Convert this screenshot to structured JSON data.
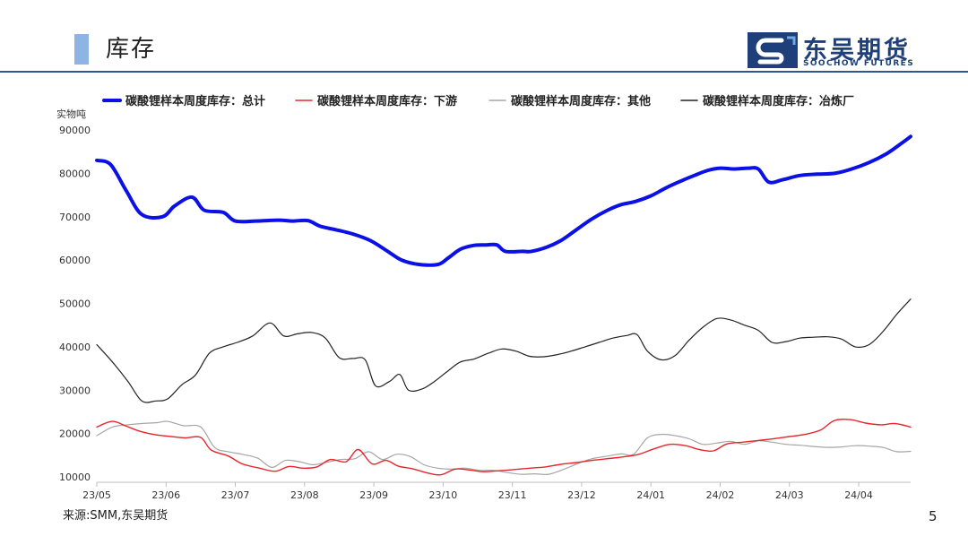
{
  "header": {
    "title": "库存",
    "logo_cn": "东吴期货",
    "logo_en": "SOOCHOW FUTURES"
  },
  "footer": {
    "source": "来源:SMM,东吴期货",
    "page_number": "5"
  },
  "colors": {
    "total": "#0a10e6",
    "downstream": "#e8252b",
    "other": "#a6a6a6",
    "smelter": "#222222",
    "brand": "#1f3f7a",
    "rule": "#2f5597"
  },
  "chart_data": {
    "type": "line",
    "title": "",
    "ylabel": "实物吨",
    "xlabel": "",
    "ylim": [
      10000,
      90000
    ],
    "yticks": [
      10000,
      20000,
      30000,
      40000,
      50000,
      60000,
      70000,
      80000,
      90000
    ],
    "ytick_labels": [
      "10000",
      "20000",
      "30000",
      "40000",
      "50000",
      "60000",
      "70000",
      "80000",
      "90000"
    ],
    "x_range": [
      0,
      47
    ],
    "x_ticks": [
      {
        "x": 0,
        "label": "23/05"
      },
      {
        "x": 4,
        "label": "23/06"
      },
      {
        "x": 8,
        "label": "23/07"
      },
      {
        "x": 12,
        "label": "23/08"
      },
      {
        "x": 16,
        "label": "23/09"
      },
      {
        "x": 20,
        "label": "23/10"
      },
      {
        "x": 24,
        "label": "23/11"
      },
      {
        "x": 28,
        "label": "23/12"
      },
      {
        "x": 32,
        "label": "24/01"
      },
      {
        "x": 36,
        "label": "24/02"
      },
      {
        "x": 40,
        "label": "24/03"
      },
      {
        "x": 44,
        "label": "24/04"
      }
    ],
    "series": [
      {
        "name": "碳酸锂样本周度库存：总计",
        "key": "total",
        "width": 4,
        "points": [
          [
            0,
            83000
          ],
          [
            0.8,
            82000
          ],
          [
            1.7,
            76000
          ],
          [
            2.6,
            70500
          ],
          [
            3.8,
            70000
          ],
          [
            4.5,
            72500
          ],
          [
            5.5,
            74500
          ],
          [
            6.2,
            71500
          ],
          [
            7.3,
            71000
          ],
          [
            8.0,
            69000
          ],
          [
            9.2,
            69000
          ],
          [
            10.5,
            69200
          ],
          [
            11.3,
            69000
          ],
          [
            12.2,
            69100
          ],
          [
            12.9,
            67800
          ],
          [
            13.8,
            67000
          ],
          [
            14.8,
            66000
          ],
          [
            15.8,
            64500
          ],
          [
            16.8,
            62000
          ],
          [
            17.6,
            60000
          ],
          [
            18.6,
            59000
          ],
          [
            19.7,
            59000
          ],
          [
            20.3,
            60500
          ],
          [
            21.0,
            62500
          ],
          [
            21.8,
            63400
          ],
          [
            22.5,
            63500
          ],
          [
            23.1,
            63500
          ],
          [
            23.6,
            62000
          ],
          [
            24.6,
            62000
          ],
          [
            25.1,
            62000
          ],
          [
            26.0,
            63000
          ],
          [
            26.8,
            64500
          ],
          [
            27.7,
            67000
          ],
          [
            28.6,
            69500
          ],
          [
            29.5,
            71500
          ],
          [
            30.3,
            72800
          ],
          [
            31.1,
            73500
          ],
          [
            32.0,
            74800
          ],
          [
            32.8,
            76500
          ],
          [
            33.6,
            78000
          ],
          [
            34.5,
            79500
          ],
          [
            35.3,
            80700
          ],
          [
            36.0,
            81200
          ],
          [
            36.8,
            81000
          ],
          [
            37.6,
            81200
          ],
          [
            38.2,
            81000
          ],
          [
            38.8,
            78000
          ],
          [
            39.6,
            78500
          ],
          [
            40.6,
            79500
          ],
          [
            41.6,
            79800
          ],
          [
            42.6,
            80000
          ],
          [
            43.6,
            81000
          ],
          [
            44.6,
            82500
          ],
          [
            45.6,
            84500
          ],
          [
            46.5,
            87000
          ],
          [
            47.0,
            88500
          ]
        ]
      },
      {
        "name": "碳酸锂样本周度库存：下游",
        "key": "downstream",
        "width": 1.4,
        "points": [
          [
            0,
            21500
          ],
          [
            0.9,
            22800
          ],
          [
            1.7,
            21700
          ],
          [
            2.5,
            20500
          ],
          [
            3.4,
            19700
          ],
          [
            4.3,
            19300
          ],
          [
            5.1,
            19000
          ],
          [
            6.0,
            19100
          ],
          [
            6.6,
            16200
          ],
          [
            7.6,
            14800
          ],
          [
            8.4,
            13000
          ],
          [
            9.4,
            12000
          ],
          [
            10.3,
            11300
          ],
          [
            11.1,
            12400
          ],
          [
            11.9,
            12000
          ],
          [
            12.7,
            12300
          ],
          [
            13.5,
            14000
          ],
          [
            14.4,
            13500
          ],
          [
            15.1,
            16300
          ],
          [
            15.9,
            13000
          ],
          [
            16.7,
            13800
          ],
          [
            17.4,
            12500
          ],
          [
            18.3,
            11800
          ],
          [
            19.2,
            10800
          ],
          [
            19.9,
            10500
          ],
          [
            20.7,
            11800
          ],
          [
            21.5,
            11600
          ],
          [
            22.3,
            11200
          ],
          [
            23.2,
            11400
          ],
          [
            24.1,
            11700
          ],
          [
            25.0,
            12000
          ],
          [
            25.9,
            12300
          ],
          [
            26.8,
            12900
          ],
          [
            27.7,
            13300
          ],
          [
            28.6,
            13800
          ],
          [
            29.5,
            14200
          ],
          [
            30.4,
            14600
          ],
          [
            31.3,
            15200
          ],
          [
            32.2,
            16500
          ],
          [
            33.1,
            17500
          ],
          [
            34.0,
            17200
          ],
          [
            34.8,
            16300
          ],
          [
            35.6,
            16000
          ],
          [
            36.4,
            17600
          ],
          [
            37.3,
            18000
          ],
          [
            38.2,
            18400
          ],
          [
            39.1,
            18800
          ],
          [
            40.0,
            19300
          ],
          [
            40.9,
            19800
          ],
          [
            41.8,
            20800
          ],
          [
            42.6,
            23000
          ],
          [
            43.5,
            23200
          ],
          [
            44.4,
            22400
          ],
          [
            45.3,
            22000
          ],
          [
            46.1,
            22300
          ],
          [
            47.0,
            21500
          ]
        ]
      },
      {
        "name": "碳酸锂样本周度库存：其他",
        "key": "other",
        "width": 1.2,
        "points": [
          [
            0,
            19500
          ],
          [
            0.9,
            21500
          ],
          [
            1.8,
            22000
          ],
          [
            2.6,
            22300
          ],
          [
            3.5,
            22500
          ],
          [
            4.1,
            22800
          ],
          [
            5.0,
            21800
          ],
          [
            6.0,
            21500
          ],
          [
            6.8,
            16800
          ],
          [
            7.6,
            15800
          ],
          [
            8.4,
            15200
          ],
          [
            9.3,
            14300
          ],
          [
            10.1,
            12200
          ],
          [
            10.9,
            13800
          ],
          [
            11.7,
            13500
          ],
          [
            12.5,
            12800
          ],
          [
            13.3,
            13400
          ],
          [
            14.1,
            14000
          ],
          [
            14.9,
            14200
          ],
          [
            15.7,
            15800
          ],
          [
            16.5,
            14000
          ],
          [
            17.3,
            15200
          ],
          [
            18.1,
            14700
          ],
          [
            18.9,
            12800
          ],
          [
            19.7,
            12000
          ],
          [
            20.5,
            11800
          ],
          [
            21.3,
            12000
          ],
          [
            22.1,
            11500
          ],
          [
            22.9,
            11500
          ],
          [
            23.7,
            11000
          ],
          [
            24.5,
            10600
          ],
          [
            25.3,
            10700
          ],
          [
            26.1,
            10600
          ],
          [
            27.0,
            11800
          ],
          [
            27.8,
            13100
          ],
          [
            28.6,
            14200
          ],
          [
            29.5,
            14800
          ],
          [
            30.3,
            15300
          ],
          [
            31.0,
            15200
          ],
          [
            31.8,
            19000
          ],
          [
            32.6,
            19800
          ],
          [
            33.4,
            19500
          ],
          [
            34.2,
            18800
          ],
          [
            35.0,
            17500
          ],
          [
            35.8,
            17800
          ],
          [
            36.6,
            18200
          ],
          [
            37.4,
            17500
          ],
          [
            38.2,
            18300
          ],
          [
            39.0,
            18000
          ],
          [
            39.8,
            17500
          ],
          [
            40.6,
            17300
          ],
          [
            41.4,
            17000
          ],
          [
            42.2,
            16800
          ],
          [
            43.0,
            16900
          ],
          [
            43.8,
            17200
          ],
          [
            44.6,
            17100
          ],
          [
            45.4,
            16800
          ],
          [
            46.2,
            15800
          ],
          [
            47.0,
            15900
          ]
        ]
      },
      {
        "name": "碳酸锂样本周度库存：冶炼厂",
        "key": "smelter",
        "width": 1.2,
        "points": [
          [
            0,
            40500
          ],
          [
            0.9,
            36500
          ],
          [
            1.8,
            32000
          ],
          [
            2.6,
            27500
          ],
          [
            3.4,
            27500
          ],
          [
            4.1,
            28000
          ],
          [
            4.9,
            31200
          ],
          [
            5.7,
            33500
          ],
          [
            6.5,
            38500
          ],
          [
            7.3,
            40000
          ],
          [
            8.1,
            41000
          ],
          [
            9.0,
            42500
          ],
          [
            10.0,
            45500
          ],
          [
            10.8,
            42500
          ],
          [
            11.6,
            43000
          ],
          [
            12.4,
            43300
          ],
          [
            13.2,
            42000
          ],
          [
            14.0,
            37500
          ],
          [
            14.8,
            37300
          ],
          [
            15.5,
            37000
          ],
          [
            16.1,
            31000
          ],
          [
            16.9,
            32000
          ],
          [
            17.5,
            33600
          ],
          [
            18.0,
            30000
          ],
          [
            18.8,
            30300
          ],
          [
            19.5,
            32000
          ],
          [
            20.3,
            34500
          ],
          [
            21.0,
            36500
          ],
          [
            21.8,
            37200
          ],
          [
            22.6,
            38500
          ],
          [
            23.4,
            39500
          ],
          [
            24.2,
            39000
          ],
          [
            25.0,
            37800
          ],
          [
            25.8,
            37700
          ],
          [
            26.6,
            38200
          ],
          [
            27.4,
            39000
          ],
          [
            28.2,
            40000
          ],
          [
            29.0,
            41000
          ],
          [
            29.8,
            42000
          ],
          [
            30.6,
            42600
          ],
          [
            31.2,
            42800
          ],
          [
            31.8,
            39000
          ],
          [
            32.6,
            37000
          ],
          [
            33.4,
            38000
          ],
          [
            34.2,
            41500
          ],
          [
            35.0,
            44500
          ],
          [
            35.8,
            46500
          ],
          [
            36.6,
            46200
          ],
          [
            37.4,
            45000
          ],
          [
            38.2,
            43800
          ],
          [
            39.0,
            41000
          ],
          [
            39.8,
            41200
          ],
          [
            40.6,
            42000
          ],
          [
            41.4,
            42200
          ],
          [
            42.2,
            42300
          ],
          [
            43.0,
            41800
          ],
          [
            43.8,
            40000
          ],
          [
            44.6,
            40500
          ],
          [
            45.4,
            43500
          ],
          [
            46.2,
            47500
          ],
          [
            47.0,
            51000
          ]
        ]
      }
    ],
    "legend": [
      {
        "key": "total",
        "label": "碳酸锂样本周度库存：总计"
      },
      {
        "key": "downstream",
        "label": "碳酸锂样本周度库存：下游"
      },
      {
        "key": "other",
        "label": "碳酸锂样本周度库存：其他"
      },
      {
        "key": "smelter",
        "label": "碳酸锂样本周度库存：冶炼厂"
      }
    ],
    "legend_position": "top",
    "grid": false
  }
}
